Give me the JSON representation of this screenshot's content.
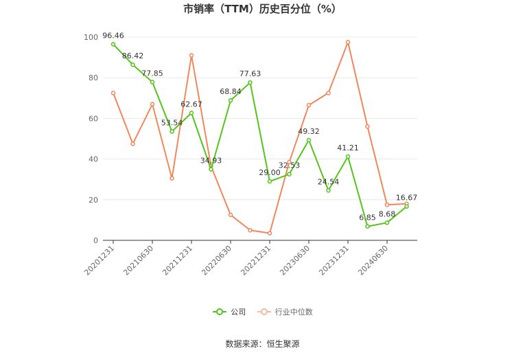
{
  "title": "市销率（TTM）历史百分位（%）",
  "source": "数据来源：恒生聚源",
  "colors": {
    "company": "#52c41a",
    "industry": "#f0875a",
    "grid": "#e8e8e8",
    "axis": "#333333",
    "tick": "#666666"
  },
  "chart_data": {
    "type": "line",
    "title": "市销率（TTM）历史百分位（%）",
    "ylim": [
      0,
      100
    ],
    "yticks": [
      0,
      20,
      40,
      60,
      80,
      100
    ],
    "grid": true,
    "legend_position": "bottom",
    "x_tick_labels": [
      "20201231",
      "20210630",
      "20211231",
      "20220630",
      "20221231",
      "20230630",
      "20231231",
      "20240630"
    ],
    "series": [
      {
        "name": "公司",
        "values": [
          96.46,
          86.42,
          77.85,
          53.54,
          62.67,
          34.93,
          68.84,
          77.63,
          29.0,
          32.53,
          49.32,
          24.54,
          41.21,
          6.85,
          8.68,
          16.67
        ],
        "labels": [
          "96.46",
          "86.42",
          "77.85",
          "53.54",
          "62.67",
          "34.93",
          "68.84",
          "77.63",
          "29.00",
          "32.53",
          "49.32",
          "24.54",
          "41.21",
          "6.85",
          "8.68",
          "16.67"
        ]
      },
      {
        "name": "行业中位数",
        "values": [
          72.5,
          47.5,
          67.0,
          30.5,
          91.0,
          36.5,
          12.5,
          5.0,
          3.5,
          38.5,
          66.5,
          72.5,
          97.5,
          56.0,
          17.5,
          18.0
        ]
      }
    ]
  }
}
